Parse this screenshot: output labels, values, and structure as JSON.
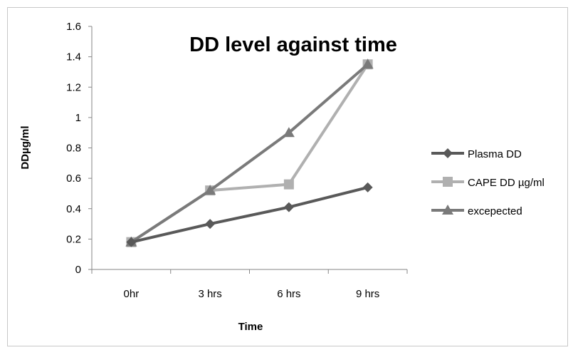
{
  "chart_data": {
    "type": "line",
    "title": "DD level against time",
    "xlabel": "Time",
    "ylabel": "DDµg/ml",
    "categories": [
      "0hr",
      "3 hrs",
      "6 hrs",
      "9 hrs"
    ],
    "ylim": [
      0,
      1.6
    ],
    "yticks": [
      0,
      0.2,
      0.4,
      0.6,
      0.8,
      1,
      1.2,
      1.4,
      1.6
    ],
    "ytick_labels": [
      "0",
      "0.2",
      "0.4",
      "0.6",
      "0.8",
      "1",
      "1.2",
      "1.4",
      "1.6"
    ],
    "grid": false,
    "legend_position": "right",
    "series": [
      {
        "name": "Plasma DD",
        "values": [
          0.18,
          0.3,
          0.41,
          0.54
        ],
        "color": "#595959",
        "marker": "diamond"
      },
      {
        "name": "CAPE DD µg/ml",
        "values": [
          0.18,
          0.52,
          0.56,
          1.35
        ],
        "color": "#b0b0b0",
        "marker": "square"
      },
      {
        "name": "excepected",
        "values": [
          0.18,
          0.52,
          0.9,
          1.35
        ],
        "color": "#7a7a7a",
        "marker": "triangle"
      }
    ]
  }
}
